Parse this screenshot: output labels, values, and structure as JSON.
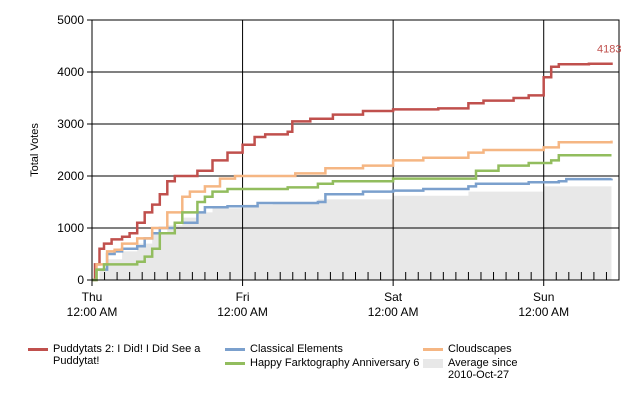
{
  "chart_data": {
    "type": "line",
    "ylabel": "Total Votes",
    "ylim": [
      0,
      5000
    ],
    "yticks": [
      "0",
      "1000",
      "2000",
      "3000",
      "4000",
      "5000"
    ],
    "xlim": [
      0,
      3.5
    ],
    "xticks": [
      {
        "day": "Thu",
        "time": "12:00 AM",
        "x": 0
      },
      {
        "day": "Fri",
        "time": "12:00 AM",
        "x": 1
      },
      {
        "day": "Sat",
        "time": "12:00 AM",
        "x": 2
      },
      {
        "day": "Sun",
        "time": "12:00 AM",
        "x": 3
      }
    ],
    "grid": true,
    "legend_position": "bottom",
    "end_label": {
      "series": 0,
      "text": "4183"
    },
    "series": [
      {
        "name": "Puddytats 2: I Did! I Did See a Puddytat!",
        "color": "#c0504d",
        "points": [
          [
            0,
            0
          ],
          [
            0.02,
            300
          ],
          [
            0.05,
            600
          ],
          [
            0.08,
            700
          ],
          [
            0.13,
            780
          ],
          [
            0.2,
            830
          ],
          [
            0.25,
            900
          ],
          [
            0.3,
            1100
          ],
          [
            0.35,
            1300
          ],
          [
            0.4,
            1450
          ],
          [
            0.45,
            1650
          ],
          [
            0.5,
            1900
          ],
          [
            0.55,
            2000
          ],
          [
            0.6,
            2000
          ],
          [
            0.7,
            2100
          ],
          [
            0.8,
            2300
          ],
          [
            0.9,
            2450
          ],
          [
            1.0,
            2600
          ],
          [
            1.08,
            2750
          ],
          [
            1.15,
            2800
          ],
          [
            1.3,
            2850
          ],
          [
            1.33,
            3050
          ],
          [
            1.45,
            3100
          ],
          [
            1.6,
            3180
          ],
          [
            1.8,
            3250
          ],
          [
            2.0,
            3280
          ],
          [
            2.3,
            3300
          ],
          [
            2.5,
            3400
          ],
          [
            2.6,
            3450
          ],
          [
            2.8,
            3500
          ],
          [
            2.9,
            3550
          ],
          [
            3.0,
            3900
          ],
          [
            3.05,
            4100
          ],
          [
            3.1,
            4150
          ],
          [
            3.3,
            4160
          ],
          [
            3.45,
            4183
          ]
        ]
      },
      {
        "name": "Classical Elements",
        "color": "#7ba0cd",
        "points": [
          [
            0,
            0
          ],
          [
            0.03,
            200
          ],
          [
            0.1,
            500
          ],
          [
            0.15,
            550
          ],
          [
            0.2,
            600
          ],
          [
            0.3,
            650
          ],
          [
            0.35,
            800
          ],
          [
            0.4,
            900
          ],
          [
            0.45,
            1000
          ],
          [
            0.55,
            1100
          ],
          [
            0.7,
            1300
          ],
          [
            0.75,
            1400
          ],
          [
            0.9,
            1420
          ],
          [
            1.1,
            1480
          ],
          [
            1.5,
            1500
          ],
          [
            1.55,
            1650
          ],
          [
            1.8,
            1700
          ],
          [
            2.0,
            1720
          ],
          [
            2.2,
            1750
          ],
          [
            2.5,
            1800
          ],
          [
            2.55,
            1850
          ],
          [
            2.9,
            1880
          ],
          [
            3.1,
            1900
          ],
          [
            3.15,
            1940
          ],
          [
            3.45,
            1950
          ]
        ]
      },
      {
        "name": "Cloudscapes",
        "color": "#f5b683",
        "points": [
          [
            0,
            0
          ],
          [
            0.03,
            300
          ],
          [
            0.1,
            550
          ],
          [
            0.15,
            580
          ],
          [
            0.2,
            700
          ],
          [
            0.3,
            800
          ],
          [
            0.4,
            1000
          ],
          [
            0.5,
            1300
          ],
          [
            0.6,
            1600
          ],
          [
            0.65,
            1700
          ],
          [
            0.75,
            1800
          ],
          [
            0.85,
            1950
          ],
          [
            0.95,
            2000
          ],
          [
            1.2,
            2000
          ],
          [
            1.35,
            2050
          ],
          [
            1.55,
            2150
          ],
          [
            1.8,
            2200
          ],
          [
            2.0,
            2300
          ],
          [
            2.2,
            2350
          ],
          [
            2.5,
            2450
          ],
          [
            2.6,
            2500
          ],
          [
            3.0,
            2550
          ],
          [
            3.1,
            2650
          ],
          [
            3.45,
            2680
          ]
        ]
      },
      {
        "name": "Happy Farktography Anniversary 6",
        "color": "#92bd5e",
        "points": [
          [
            0,
            0
          ],
          [
            0.03,
            200
          ],
          [
            0.08,
            300
          ],
          [
            0.3,
            350
          ],
          [
            0.35,
            450
          ],
          [
            0.4,
            600
          ],
          [
            0.45,
            900
          ],
          [
            0.55,
            1100
          ],
          [
            0.6,
            1300
          ],
          [
            0.7,
            1500
          ],
          [
            0.75,
            1600
          ],
          [
            0.8,
            1700
          ],
          [
            0.9,
            1750
          ],
          [
            1.3,
            1780
          ],
          [
            1.5,
            1850
          ],
          [
            1.6,
            1900
          ],
          [
            2.0,
            1950
          ],
          [
            2.55,
            2100
          ],
          [
            2.7,
            2200
          ],
          [
            2.9,
            2250
          ],
          [
            3.05,
            2300
          ],
          [
            3.1,
            2400
          ],
          [
            3.45,
            2400
          ]
        ]
      }
    ],
    "average": {
      "name": "Average since 2010-Oct-27",
      "color": "#e8e8e8",
      "points": [
        [
          0,
          0
        ],
        [
          0.05,
          200
        ],
        [
          0.1,
          400
        ],
        [
          0.2,
          550
        ],
        [
          0.3,
          700
        ],
        [
          0.4,
          900
        ],
        [
          0.5,
          1050
        ],
        [
          0.6,
          1200
        ],
        [
          0.7,
          1300
        ],
        [
          0.8,
          1380
        ],
        [
          1.0,
          1450
        ],
        [
          1.2,
          1500
        ],
        [
          1.5,
          1550
        ],
        [
          2.0,
          1620
        ],
        [
          2.5,
          1700
        ],
        [
          3.0,
          1800
        ],
        [
          3.45,
          1900
        ]
      ]
    }
  },
  "legend": [
    {
      "label": "Puddytats 2: I Did! I Did See a Puddytat!",
      "color": "#c0504d",
      "kind": "line"
    },
    {
      "label": "Classical Elements",
      "color": "#7ba0cd",
      "kind": "line"
    },
    {
      "label": "Cloudscapes",
      "color": "#f5b683",
      "kind": "line"
    },
    {
      "label": "Happy Farktography Anniversary 6",
      "color": "#92bd5e",
      "kind": "line"
    },
    {
      "label": "Average since 2010-Oct-27",
      "color": "#e8e8e8",
      "kind": "area"
    }
  ]
}
